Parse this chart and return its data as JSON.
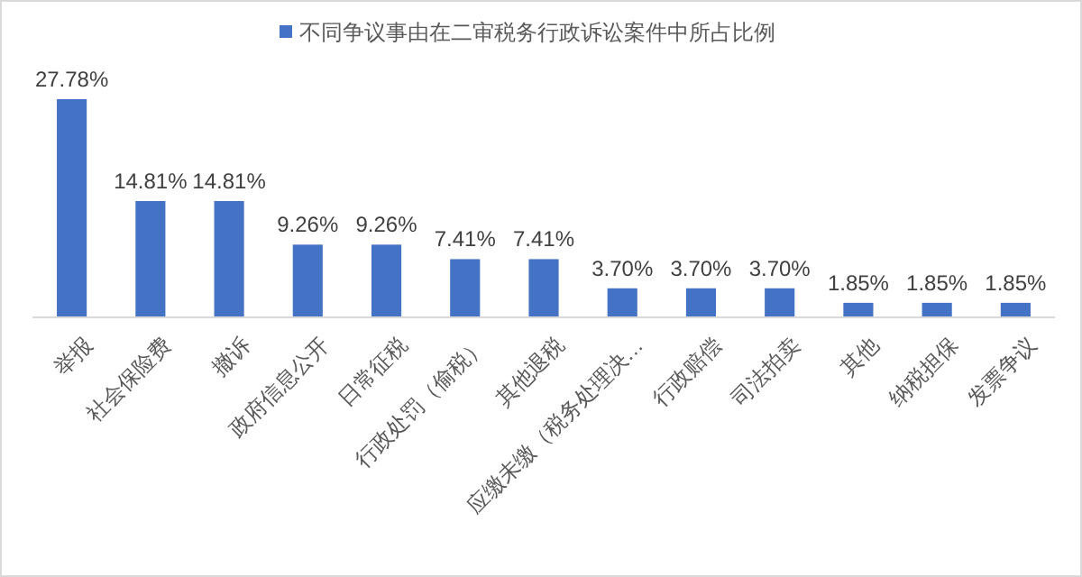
{
  "chart_data": {
    "type": "bar",
    "categories": [
      "举报",
      "社会保险费",
      "撤诉",
      "政府信息公开",
      "日常征税",
      "行政处罚（偷税）",
      "其他退税",
      "应缴未缴（税务处理决…",
      "行政赔偿",
      "司法拍卖",
      "其他",
      "纳税担保",
      "发票争议"
    ],
    "series": [
      {
        "name": "不同争议事由在二审税务行政诉讼案件中所占比例",
        "color": "#4472c4",
        "values": [
          27.78,
          14.81,
          14.81,
          9.26,
          9.26,
          7.41,
          7.41,
          3.7,
          3.7,
          3.7,
          1.85,
          1.85,
          1.85
        ],
        "value_labels": [
          "27.78%",
          "14.81%",
          "14.81%",
          "9.26%",
          "9.26%",
          "7.41%",
          "7.41%",
          "3.70%",
          "3.70%",
          "3.70%",
          "1.85%",
          "1.85%",
          "1.85%"
        ]
      }
    ],
    "legend": "top"
  }
}
